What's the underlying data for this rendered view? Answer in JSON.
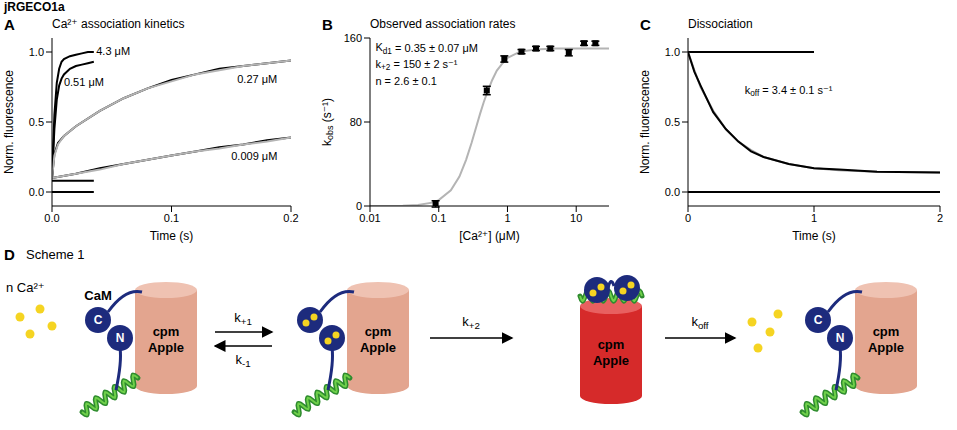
{
  "header": {
    "title": "jRGECO1a"
  },
  "chart_data": [
    {
      "panel": "A",
      "type": "line",
      "title": "Ca²⁺ association kinetics",
      "x_label": "Time (s)",
      "y_label": "Norm. fluorescence",
      "xlim": [
        0,
        0.2
      ],
      "ylim": [
        -0.1,
        1.1
      ],
      "xticks": [
        {
          "value": 0,
          "label": "0.0"
        },
        0.1,
        0.2
      ],
      "yticks": [
        {
          "value": 0,
          "label": "0.0"
        },
        0.5,
        {
          "value": 1,
          "label": "1.0"
        }
      ],
      "annotations": [
        "4.3 μM",
        "0.51 μM",
        "0.27 μM",
        "0.009 μM"
      ],
      "series": [
        {
          "color": "#000000",
          "x": [
            0,
            0.002,
            0.004,
            0.006,
            0.008,
            0.01,
            0.015,
            0.02,
            0.025,
            0.03,
            0.035
          ],
          "values": [
            0.1,
            0.55,
            0.78,
            0.88,
            0.93,
            0.95,
            0.97,
            0.98,
            0.99,
            1.0,
            1.0
          ]
        },
        {
          "color": "#000000",
          "x": [
            0,
            0.002,
            0.004,
            0.006,
            0.008,
            0.01,
            0.015,
            0.02,
            0.025,
            0.03,
            0.035
          ],
          "values": [
            0.1,
            0.45,
            0.66,
            0.76,
            0.81,
            0.84,
            0.88,
            0.9,
            0.91,
            0.92,
            0.93
          ]
        },
        {
          "color": "#000000",
          "x": [
            0,
            0.002,
            0.005,
            0.01,
            0.02,
            0.04,
            0.06,
            0.08,
            0.1,
            0.12,
            0.14,
            0.16,
            0.18,
            0.2
          ],
          "values": [
            0.1,
            0.27,
            0.35,
            0.4,
            0.47,
            0.58,
            0.67,
            0.74,
            0.8,
            0.84,
            0.88,
            0.9,
            0.92,
            0.94
          ]
        },
        {
          "color": "#000000",
          "x": [
            0,
            0.02,
            0.04,
            0.06,
            0.08,
            0.1,
            0.12,
            0.14,
            0.16,
            0.18,
            0.2
          ],
          "values": [
            0.1,
            0.13,
            0.17,
            0.2,
            0.23,
            0.26,
            0.29,
            0.32,
            0.34,
            0.37,
            0.39
          ]
        },
        {
          "color": "#000000",
          "x": [
            0,
            0.035
          ],
          "values": [
            0,
            0
          ]
        },
        {
          "color": "#000000",
          "x": [
            0,
            0.035
          ],
          "values": [
            0.08,
            0.08
          ]
        },
        {
          "color": "#b4b4b4",
          "x": [
            0,
            0.002,
            0.005,
            0.01,
            0.02,
            0.04,
            0.06,
            0.08,
            0.1,
            0.12,
            0.14,
            0.16,
            0.18,
            0.2
          ],
          "values": [
            0.1,
            0.26,
            0.34,
            0.4,
            0.47,
            0.58,
            0.67,
            0.74,
            0.79,
            0.84,
            0.87,
            0.9,
            0.92,
            0.94
          ]
        },
        {
          "color": "#b4b4b4",
          "x": [
            0,
            0.02,
            0.04,
            0.06,
            0.08,
            0.1,
            0.12,
            0.14,
            0.16,
            0.18,
            0.2
          ],
          "values": [
            0.1,
            0.13,
            0.16,
            0.2,
            0.23,
            0.26,
            0.29,
            0.31,
            0.34,
            0.36,
            0.39
          ]
        }
      ]
    },
    {
      "panel": "B",
      "type": "scatter",
      "title": "Observed association rates",
      "x_label": "[Ca²⁺] (μM)",
      "y_label": {
        "main": "k",
        "sub": "obs",
        "rest": " (s⁻¹)"
      },
      "log": "x",
      "xlim": [
        0.01,
        30
      ],
      "ylim": [
        0,
        160
      ],
      "xticks": [
        0.01,
        0.1,
        1,
        10
      ],
      "yticks": [
        0,
        80,
        160
      ],
      "annotations": [
        {
          "main": "K",
          "sub": "d1",
          "rest": " = 0.35 ± 0.07 μM"
        },
        {
          "main": "k",
          "sub": "+2",
          "rest": " = 150 ± 2 s⁻¹"
        },
        "n = 2.6 ± 0.1"
      ],
      "series": [
        {
          "type": "line",
          "color": "#b4b4b4",
          "x": [
            0.01,
            0.03,
            0.05,
            0.08,
            0.1,
            0.15,
            0.2,
            0.25,
            0.3,
            0.35,
            0.4,
            0.45,
            0.5,
            0.6,
            0.7,
            0.85,
            1,
            1.5,
            2,
            3,
            5,
            10,
            30
          ],
          "values": [
            0,
            0.25,
            0.95,
            3.2,
            5.6,
            14.9,
            28,
            44,
            60,
            75,
            88,
            98.6,
            107,
            120,
            129,
            136,
            141,
            146.7,
            148,
            149.4,
            150,
            150,
            150
          ]
        },
        {
          "type": "scatter",
          "color": "#000000",
          "marker": "square",
          "x": [
            0.09,
            0.5,
            0.9,
            1.6,
            2.6,
            4.2,
            7.8,
            13,
            19
          ],
          "values": [
            2,
            110,
            140,
            147,
            150,
            150,
            146,
            155,
            155
          ],
          "errors": [
            3,
            4,
            3,
            2,
            2,
            2,
            3,
            2,
            2
          ]
        }
      ]
    },
    {
      "panel": "C",
      "type": "line",
      "title": "Dissociation",
      "x_label": "Time (s)",
      "y_label": "Norm. fluorescence",
      "xlim": [
        0,
        2
      ],
      "ylim": [
        -0.1,
        1.1
      ],
      "xticks": [
        0,
        1,
        2
      ],
      "yticks": [
        {
          "value": 0,
          "label": "0.0"
        },
        0.5,
        {
          "value": 1,
          "label": "1.0"
        }
      ],
      "annotations": [
        {
          "main": "k",
          "sub": "off",
          "rest": " = 3.4 ± 0.1 s⁻¹"
        }
      ],
      "series": [
        {
          "color": "#000000",
          "x": [
            0,
            1
          ],
          "values": [
            1,
            1
          ]
        },
        {
          "color": "#000000",
          "x": [
            0,
            2
          ],
          "values": [
            0,
            0
          ]
        },
        {
          "color": "#9a9a9a",
          "x": [
            0,
            0.05,
            0.1,
            0.2,
            0.3,
            0.4,
            0.5,
            0.6,
            0.8,
            1.0,
            1.2,
            1.5,
            2.0
          ],
          "values": [
            1.0,
            0.87,
            0.75,
            0.58,
            0.45,
            0.36,
            0.3,
            0.25,
            0.2,
            0.17,
            0.155,
            0.145,
            0.14
          ]
        },
        {
          "color": "#000000",
          "x": [
            0,
            0.05,
            0.1,
            0.2,
            0.3,
            0.4,
            0.5,
            0.6,
            0.8,
            1.0,
            1.2,
            1.5,
            2.0
          ],
          "values": [
            1.0,
            0.86,
            0.76,
            0.57,
            0.45,
            0.36,
            0.29,
            0.25,
            0.2,
            0.17,
            0.16,
            0.145,
            0.14
          ]
        }
      ]
    }
  ],
  "scheme": {
    "panel": "D",
    "title": "Scheme 1",
    "ion_label": "n Ca²⁺",
    "cam_label": "CaM",
    "lobe_labels": [
      "C",
      "N"
    ],
    "protein_label": [
      "cpm",
      "Apple"
    ],
    "rates": [
      {
        "main": "k",
        "sub": "+1"
      },
      {
        "main": "k",
        "sub": "-1"
      },
      {
        "main": "k",
        "sub": "+2"
      },
      {
        "main": "k",
        "sub": "off"
      }
    ]
  }
}
